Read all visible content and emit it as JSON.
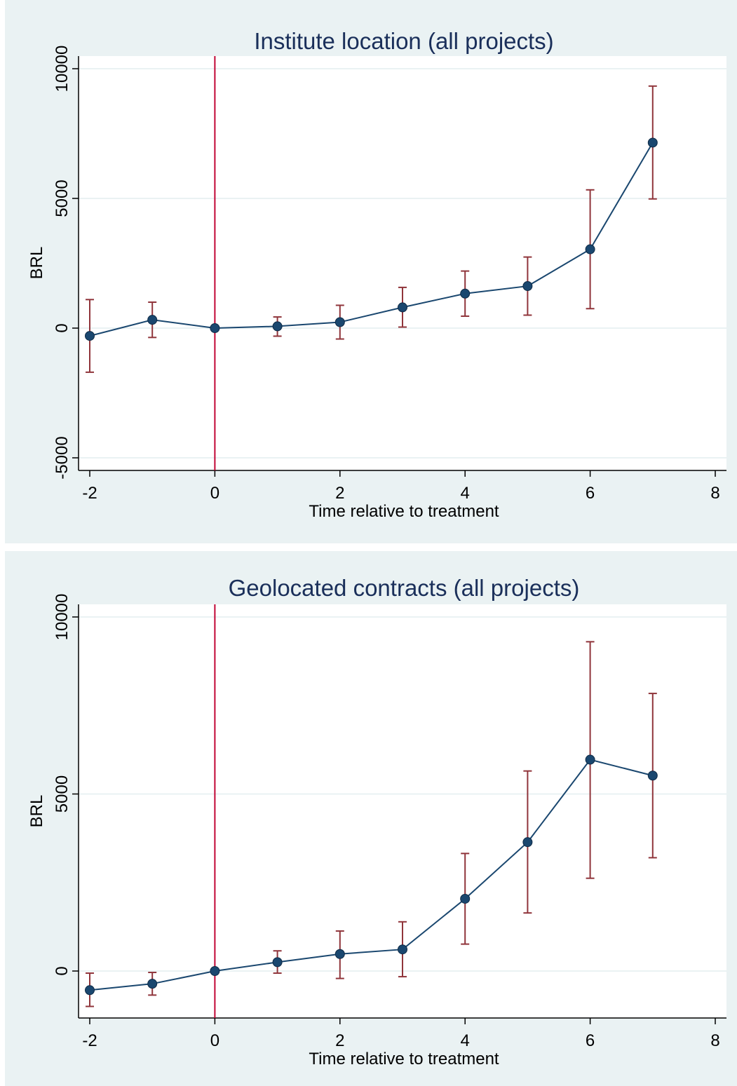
{
  "chart_data": [
    {
      "type": "line",
      "title": "Institute location (all projects)",
      "xlabel": "Time relative to treatment",
      "ylabel": "BRL",
      "xlim": [
        -2,
        8
      ],
      "ylim": [
        -5000,
        10000
      ],
      "xticks": [
        -2,
        0,
        2,
        4,
        6,
        8
      ],
      "xtick_labels": [
        "-2",
        "0",
        "2",
        "4",
        "6",
        "8"
      ],
      "yticks": [
        -5000,
        0,
        5000,
        10000
      ],
      "ytick_labels": [
        "-5000",
        "0",
        "5000",
        "10000"
      ],
      "grid": true,
      "reference_line_x": 0,
      "colors": {
        "line": "#1a476f",
        "marker": "#1a476f",
        "error_bar": "#90353b",
        "reference": "#c10534",
        "grid": "#eaf2f3"
      },
      "series": [
        {
          "x": [
            -2,
            -1,
            0,
            1,
            2,
            3,
            4,
            5,
            6,
            7
          ],
          "y": [
            -300,
            320,
            0,
            70,
            230,
            800,
            1330,
            1620,
            3040,
            7150
          ],
          "ci_low": [
            -1700,
            -360,
            0,
            -310,
            -420,
            40,
            460,
            500,
            750,
            4980
          ],
          "ci_high": [
            1100,
            1000,
            0,
            430,
            880,
            1570,
            2200,
            2740,
            5330,
            9330
          ]
        }
      ]
    },
    {
      "type": "line",
      "title": "Geolocated contracts (all projects)",
      "xlabel": "Time relative to treatment",
      "ylabel": "BRL",
      "xlim": [
        -2,
        8
      ],
      "ylim": [
        -1300,
        10300
      ],
      "xticks": [
        -2,
        0,
        2,
        4,
        6,
        8
      ],
      "xtick_labels": [
        "-2",
        "0",
        "2",
        "4",
        "6",
        "8"
      ],
      "yticks": [
        0,
        5000,
        10000
      ],
      "ytick_labels": [
        "0",
        "5000",
        "10000"
      ],
      "grid": true,
      "reference_line_x": 0,
      "colors": {
        "line": "#1a476f",
        "marker": "#1a476f",
        "error_bar": "#90353b",
        "reference": "#c10534",
        "grid": "#eaf2f3"
      },
      "series": [
        {
          "x": [
            -2,
            -1,
            0,
            1,
            2,
            3,
            4,
            5,
            6,
            7
          ],
          "y": [
            -540,
            -360,
            0,
            250,
            480,
            610,
            2040,
            3640,
            5970,
            5520
          ],
          "ci_low": [
            -1000,
            -680,
            0,
            -60,
            -210,
            -160,
            760,
            1640,
            2620,
            3200
          ],
          "ci_high": [
            -60,
            -40,
            0,
            570,
            1130,
            1390,
            3320,
            5650,
            9300,
            7840
          ]
        }
      ]
    }
  ]
}
